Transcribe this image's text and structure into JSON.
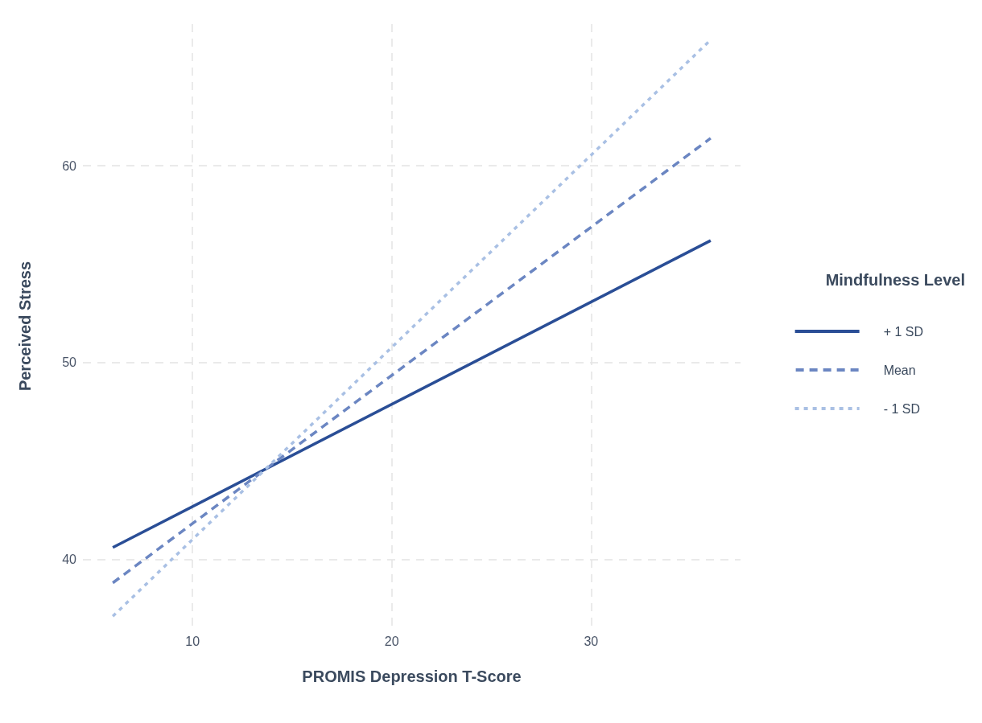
{
  "chart_data": {
    "type": "line",
    "xlabel": "PROMIS Depression T-Score",
    "ylabel": "Perceived Stress",
    "legend_title": "Mindfulness Level",
    "x": [
      6,
      36
    ],
    "series": [
      {
        "name": "+ 1 SD",
        "color": "#2a4e96",
        "line_style": "solid",
        "values": [
          40.6,
          56.2
        ]
      },
      {
        "name": "Mean",
        "color": "#6b86c2",
        "line_style": "dashed",
        "values": [
          38.8,
          61.4
        ]
      },
      {
        "name": "- 1 SD",
        "color": "#a9c0e4",
        "line_style": "dotted",
        "values": [
          37.1,
          66.4
        ]
      }
    ],
    "xlim": [
      4.5,
      37.5
    ],
    "xticks": [
      10,
      20,
      30
    ],
    "ylim": [
      36.5,
      67.2
    ],
    "yticks": [
      40,
      50,
      60
    ],
    "grid": true,
    "legend": "right",
    "marker": "none"
  }
}
